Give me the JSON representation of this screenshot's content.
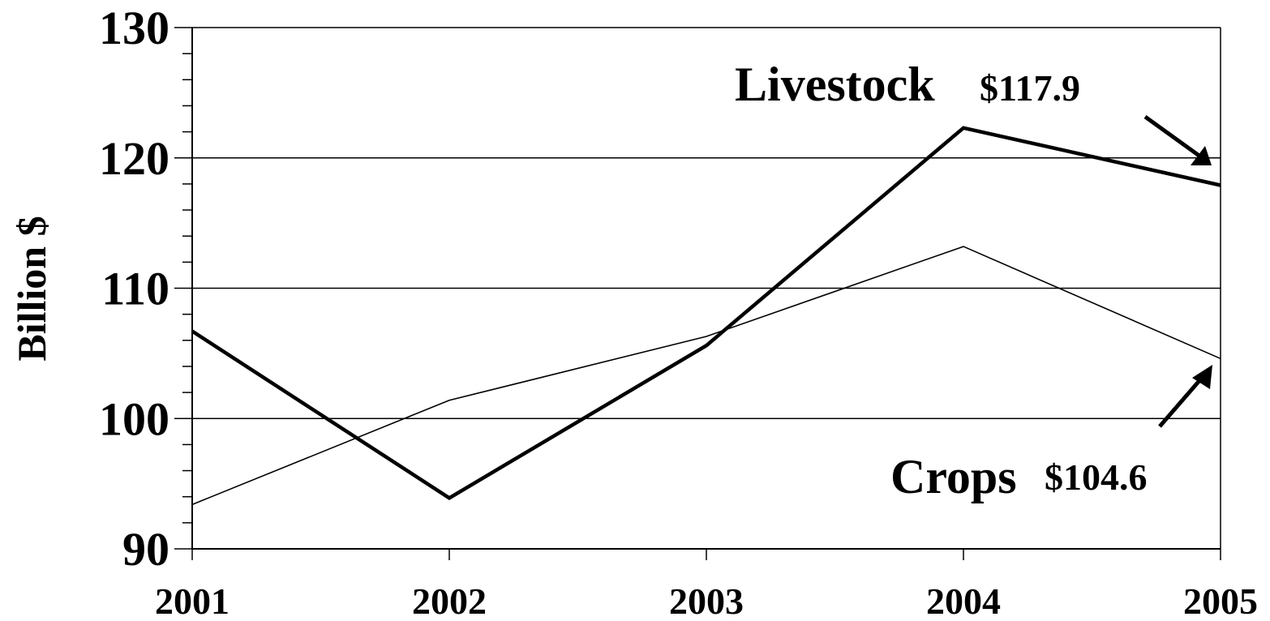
{
  "chart_data": {
    "type": "line",
    "title": "",
    "xlabel": "",
    "ylabel": "Billion $",
    "x": [
      "2001",
      "2002",
      "2003",
      "2004",
      "2005"
    ],
    "ylim": [
      90,
      130
    ],
    "y_major_ticks": [
      90,
      100,
      110,
      120,
      130
    ],
    "y_minor_step": 2,
    "grid": {
      "horizontal": true,
      "vertical": false,
      "lines_at": [
        100,
        110,
        120
      ]
    },
    "series": [
      {
        "name": "Livestock",
        "values": [
          106.7,
          93.9,
          105.6,
          122.3,
          117.9
        ],
        "color": "#000000",
        "line_style": "thick"
      },
      {
        "name": "Crops",
        "values": [
          93.4,
          101.4,
          106.3,
          113.2,
          104.6
        ],
        "color": "#000000",
        "line_style": "thin"
      }
    ],
    "annotations": [
      {
        "series": "Livestock",
        "label": "Livestock",
        "value_label": "$117.9"
      },
      {
        "series": "Crops",
        "label": "Crops",
        "value_label": "$104.6"
      }
    ]
  }
}
